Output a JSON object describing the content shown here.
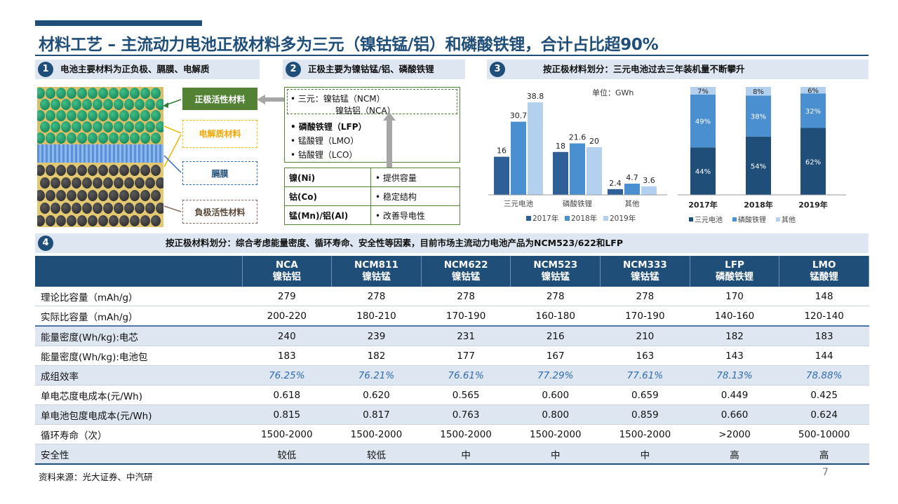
{
  "title": "材料工艺 – 主流动力电池正极材料多为三元（镍钴锰/铝）和磷酸铁锂，合计占比超90%",
  "sections": {
    "s1": {
      "num": "1",
      "title": "电池主要材料为正负极、膈膜、电解质"
    },
    "s2": {
      "num": "2",
      "title": "正极主要为镍钴锰/铝、磷酸铁锂"
    },
    "s3": {
      "num": "3",
      "title": "按正极材料划分：三元电池过去三年装机量不断攀升"
    },
    "s4": {
      "num": "4",
      "title": "按正极材料划分：综合考虑能量密度、循环寿命、安全性等因素，目前市场主流动力电池产品为NCM523/622和LFP"
    }
  },
  "diagram": {
    "cathode_label": "正极活性材料",
    "electrolyte_label": "电解质材料",
    "separator_label": "膈膜",
    "anode_label": "負极活性材料"
  },
  "cathode_materials": {
    "ternary_line1": "•  三元：镍钴锰（NCM）",
    "ternary_line2": "镍钴铝（NCA）",
    "items": [
      "•  磷酸铁锂（LFP）",
      "•  锰酸锂（LMO）",
      "•  钴酸锂（LCO）"
    ],
    "elements": [
      {
        "element": "镍(Ni)",
        "role": "•  提供容量"
      },
      {
        "element": "钴(Co)",
        "role": "•  稳定结构"
      },
      {
        "element": "锰(Mn)/铝(Al)",
        "role": "•  改善导电性"
      }
    ]
  },
  "chart_data": [
    {
      "type": "bar",
      "unit_label": "单位：GWh",
      "categories": [
        "三元电池",
        "磷酸铁锂",
        "其他"
      ],
      "series": [
        {
          "name": "2017年",
          "values": [
            16,
            18,
            2.4
          ],
          "color": "#2e5f96"
        },
        {
          "name": "2018年",
          "values": [
            30.7,
            21.6,
            4.7
          ],
          "color": "#4a8fd0"
        },
        {
          "name": "2019年",
          "values": [
            38.8,
            20,
            3.6
          ],
          "color": "#b3d0ee"
        }
      ],
      "labels": [
        [
          "16",
          "18",
          "2.4"
        ],
        [
          "30.7",
          "21.6",
          "4.7"
        ],
        [
          "38.8",
          "20",
          "3.6"
        ]
      ],
      "ylim": [
        0,
        40
      ]
    },
    {
      "type": "bar",
      "stacked": true,
      "percent": true,
      "categories": [
        "2017年",
        "2018年",
        "2019年"
      ],
      "series": [
        {
          "name": "三元电池",
          "values": [
            44,
            54,
            62
          ],
          "color": "#1f4e79"
        },
        {
          "name": "磷酸铁锂",
          "values": [
            49,
            38,
            32
          ],
          "color": "#4a8fd0"
        },
        {
          "name": "其他",
          "values": [
            7,
            8,
            6
          ],
          "color": "#b3d0ee"
        }
      ],
      "labels": [
        [
          "44%",
          "54%",
          "62%"
        ],
        [
          "49%",
          "38%",
          "32%"
        ],
        [
          "7%",
          "8%",
          "6%"
        ]
      ]
    }
  ],
  "table": {
    "headers": [
      {
        "l1": "",
        "l2": ""
      },
      {
        "l1": "NCA",
        "l2": "镍钴铝"
      },
      {
        "l1": "NCM811",
        "l2": "镍钴锰"
      },
      {
        "l1": "NCM622",
        "l2": "镍钴锰"
      },
      {
        "l1": "NCM523",
        "l2": "镍钴锰"
      },
      {
        "l1": "NCM333",
        "l2": "镍钴锰"
      },
      {
        "l1": "LFP",
        "l2": "磷酸铁锂"
      },
      {
        "l1": "LMO",
        "l2": "锰酸锂"
      }
    ],
    "rows": [
      [
        "理论比容量（mAh/g）",
        "279",
        "278",
        "278",
        "278",
        "278",
        "170",
        "148"
      ],
      [
        "实际比容量（mAh/g）",
        "200-220",
        "180-210",
        "170-190",
        "160-180",
        "170-190",
        "140-160",
        "120-140"
      ],
      [
        "能量密度(Wh/kg):电芯",
        "240",
        "239",
        "231",
        "216",
        "210",
        "182",
        "183"
      ],
      [
        "能量密度(Wh/kg):电池包",
        "183",
        "182",
        "177",
        "167",
        "163",
        "143",
        "144"
      ],
      [
        "成组效率",
        "76.25%",
        "76.21%",
        "76.61%",
        "77.29%",
        "77.61%",
        "78.13%",
        "78.88%"
      ],
      [
        "单电芯度电成本(元/Wh)",
        "0.618",
        "0.620",
        "0.565",
        "0.600",
        "0.659",
        "0.449",
        "0.425"
      ],
      [
        "单电池包度电成本(元/Wh)",
        "0.815",
        "0.817",
        "0.763",
        "0.800",
        "0.859",
        "0.660",
        "0.624"
      ],
      [
        "循环寿命（次）",
        "1500-2000",
        "1500-2000",
        "1500-2000",
        "1500-2000",
        "1500-2000",
        ">2000",
        "500-10000"
      ],
      [
        "安全性",
        "较低",
        "较低",
        "中",
        "中",
        "中",
        "高",
        "高"
      ]
    ]
  },
  "footer": {
    "source": "资料来源：光大证券、中汽研",
    "page": "7"
  }
}
